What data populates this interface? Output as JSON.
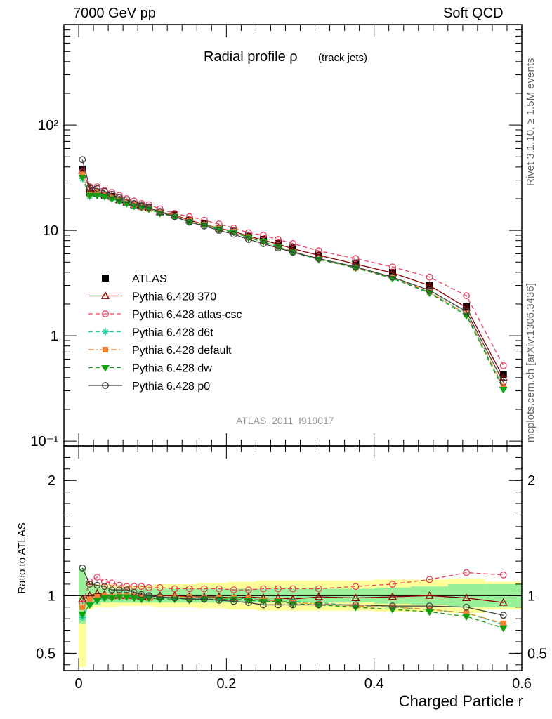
{
  "header": {
    "energy": "7000 GeV pp",
    "process": "Soft QCD"
  },
  "side": {
    "version": "Rivet 3.1.10, ≥ 1.5M events",
    "source": "mcplots.cern.ch [arXiv:1306.3436]"
  },
  "chart_data": [
    {
      "type": "line",
      "panel": "main",
      "title": "Radial profile ρ (track jets)",
      "title_main": "Radial profile ρ",
      "title_sub": "(track jets)",
      "analysis": "ATLAS_2011_I919017",
      "yscale": "log",
      "ylim": [
        0.09,
        900
      ],
      "xlim": [
        -0.02,
        0.6
      ],
      "yticks": [
        {
          "v": 0.1,
          "label": "10⁻¹"
        },
        {
          "v": 1,
          "label": "1"
        },
        {
          "v": 10,
          "label": "10"
        },
        {
          "v": 100,
          "label": "10²"
        }
      ],
      "x": [
        0.005,
        0.015,
        0.025,
        0.035,
        0.045,
        0.055,
        0.065,
        0.075,
        0.085,
        0.095,
        0.11,
        0.13,
        0.15,
        0.17,
        0.19,
        0.21,
        0.23,
        0.25,
        0.27,
        0.29,
        0.325,
        0.375,
        0.425,
        0.475,
        0.525,
        0.575
      ],
      "series": [
        {
          "name": "ATLAS",
          "style": "data",
          "color": "#000000",
          "values": [
            38,
            23,
            22.5,
            21.5,
            21,
            19.5,
            18.5,
            17.5,
            17,
            16.5,
            15,
            14,
            12.5,
            11.5,
            10.5,
            9.8,
            8.8,
            8.2,
            7.5,
            6.8,
            5.8,
            4.9,
            4.0,
            3.0,
            1.9,
            0.43
          ],
          "yerr": [
            0.06,
            0.03,
            0.03,
            0.03,
            0.03,
            0.03,
            0.03,
            0.03,
            0.03,
            0.03,
            0.03,
            0.03,
            0.03,
            0.03,
            0.03,
            0.03,
            0.03,
            0.03,
            0.03,
            0.03,
            0.03,
            0.03,
            0.04,
            0.04,
            0.05,
            0.06
          ]
        },
        {
          "name": "Pythia 6.428 370",
          "style": "solid",
          "marker": "triangle",
          "color": "#8b0000",
          "values": [
            37,
            25,
            23,
            22,
            21,
            19.5,
            18.5,
            17.5,
            17,
            16.5,
            15,
            14,
            12.5,
            11.4,
            10.5,
            9.8,
            8.8,
            8.1,
            7.4,
            6.7,
            5.8,
            4.8,
            3.95,
            3.0,
            1.85,
            0.4
          ]
        },
        {
          "name": "Pythia 6.428 atlas-csc",
          "style": "dashed",
          "marker": "circle",
          "color": "#e8405e",
          "values": [
            36,
            26,
            26,
            24,
            23,
            21.5,
            20,
            19,
            18,
            17.5,
            16,
            14.5,
            13.5,
            12.5,
            11.5,
            10.5,
            9.5,
            9,
            8.2,
            7.5,
            6.4,
            5.4,
            4.5,
            3.6,
            2.4,
            0.52
          ]
        },
        {
          "name": "Pythia 6.428 d6t",
          "style": "dashed",
          "marker": "star",
          "color": "#1dc9a0",
          "values": [
            31,
            21,
            22,
            21,
            20,
            19,
            18,
            17,
            16.5,
            16,
            14.5,
            13.5,
            12,
            11.3,
            10.4,
            9.7,
            8.6,
            7.8,
            7,
            6.3,
            5.4,
            4.4,
            3.55,
            2.6,
            1.6,
            0.32
          ]
        },
        {
          "name": "Pythia 6.428 default",
          "style": "dashdot",
          "marker": "square",
          "color": "#f08030",
          "values": [
            34,
            22,
            23,
            21.5,
            20.5,
            19.5,
            18.5,
            17.5,
            16.5,
            16,
            15,
            13.8,
            12.4,
            11.3,
            10.4,
            9.7,
            8.6,
            7.8,
            7,
            6.3,
            5.4,
            4.4,
            3.6,
            2.6,
            1.6,
            0.33
          ]
        },
        {
          "name": "Pythia 6.428 dw",
          "style": "dashed",
          "marker": "triangle-down",
          "color": "#10a010",
          "values": [
            32,
            21.5,
            21.5,
            21,
            20,
            19,
            18,
            17,
            16.5,
            16,
            14.5,
            13.5,
            12,
            11.2,
            10.3,
            9.6,
            8.5,
            7.8,
            7,
            6.2,
            5.3,
            4.4,
            3.5,
            2.55,
            1.55,
            0.31
          ]
        },
        {
          "name": "Pythia 6.428 p0",
          "style": "solid",
          "marker": "circle",
          "color": "#404040",
          "values": [
            47,
            25.5,
            25,
            23.5,
            22,
            20.5,
            19.5,
            18,
            17,
            16.5,
            15,
            13.5,
            12,
            11,
            10,
            9.2,
            8.2,
            7.5,
            6.8,
            6.2,
            5.4,
            4.5,
            3.6,
            2.7,
            1.7,
            0.36
          ]
        }
      ],
      "legend": {
        "placement": "left-middle"
      }
    },
    {
      "type": "line",
      "panel": "ratio",
      "ylabel": "Ratio to ATLAS",
      "xlabel": "Charged Particle r",
      "ylim": [
        0.35,
        2.3
      ],
      "xlim": [
        -0.02,
        0.6
      ],
      "yticks": [
        {
          "v": 0.5,
          "label": "0.5"
        },
        {
          "v": 1,
          "label": "1"
        },
        {
          "v": 2,
          "label": "2"
        }
      ],
      "xticks": [
        {
          "v": 0,
          "label": "0"
        },
        {
          "v": 0.2,
          "label": "0.2"
        },
        {
          "v": 0.4,
          "label": "0.4"
        },
        {
          "v": 0.6,
          "label": "0.6"
        }
      ],
      "band_inner": [
        [
          0.76,
          1.24
        ],
        [
          0.92,
          1.08
        ],
        [
          0.92,
          1.08
        ],
        [
          0.94,
          1.06
        ],
        [
          0.94,
          1.06
        ],
        [
          0.94,
          1.06
        ],
        [
          0.94,
          1.06
        ],
        [
          0.94,
          1.06
        ],
        [
          0.94,
          1.06
        ],
        [
          0.94,
          1.06
        ],
        [
          0.94,
          1.06
        ],
        [
          0.94,
          1.06
        ],
        [
          0.94,
          1.06
        ],
        [
          0.94,
          1.06
        ],
        [
          0.94,
          1.06
        ],
        [
          0.94,
          1.06
        ],
        [
          0.94,
          1.06
        ],
        [
          0.94,
          1.06
        ],
        [
          0.94,
          1.06
        ],
        [
          0.94,
          1.06
        ],
        [
          0.94,
          1.06
        ],
        [
          0.94,
          1.06
        ],
        [
          0.93,
          1.07
        ],
        [
          0.92,
          1.08
        ],
        [
          0.9,
          1.1
        ],
        [
          0.9,
          1.1
        ]
      ],
      "band_outer": [
        [
          0.38,
          1.24
        ],
        [
          0.88,
          1.12
        ],
        [
          0.9,
          1.1
        ],
        [
          0.9,
          1.1
        ],
        [
          0.9,
          1.1
        ],
        [
          0.91,
          1.09
        ],
        [
          0.91,
          1.09
        ],
        [
          0.91,
          1.09
        ],
        [
          0.91,
          1.09
        ],
        [
          0.91,
          1.09
        ],
        [
          0.9,
          1.1
        ],
        [
          0.9,
          1.1
        ],
        [
          0.9,
          1.1
        ],
        [
          0.89,
          1.11
        ],
        [
          0.89,
          1.11
        ],
        [
          0.88,
          1.12
        ],
        [
          0.88,
          1.12
        ],
        [
          0.87,
          1.13
        ],
        [
          0.87,
          1.13
        ],
        [
          0.87,
          1.13
        ],
        [
          0.87,
          1.13
        ],
        [
          0.87,
          1.13
        ],
        [
          0.86,
          1.14
        ],
        [
          0.86,
          1.14
        ],
        [
          0.85,
          1.15
        ],
        [
          0.88,
          1.12
        ]
      ],
      "series": [
        {
          "name": "Pythia 6.428 370",
          "values": [
            0.97,
            1.0,
            1.02,
            1.01,
            1.0,
            1.0,
            1.0,
            1.0,
            0.99,
            0.99,
            1.0,
            1.0,
            0.99,
            0.99,
            0.99,
            0.98,
            0.99,
            0.98,
            0.98,
            0.97,
            0.99,
            0.98,
            0.99,
            1.0,
            0.98,
            0.94
          ]
        },
        {
          "name": "Pythia 6.428 atlas-csc",
          "values": [
            0.93,
            1.12,
            1.16,
            1.12,
            1.11,
            1.09,
            1.08,
            1.08,
            1.08,
            1.07,
            1.07,
            1.06,
            1.06,
            1.06,
            1.06,
            1.05,
            1.05,
            1.06,
            1.06,
            1.06,
            1.06,
            1.08,
            1.1,
            1.14,
            1.2,
            1.18
          ]
        },
        {
          "name": "Pythia 6.428 d6t",
          "values": [
            0.81,
            0.93,
            0.97,
            0.98,
            0.99,
            1.0,
            1.0,
            0.99,
            0.98,
            0.99,
            0.98,
            0.98,
            0.97,
            0.98,
            0.98,
            0.97,
            0.98,
            0.96,
            0.95,
            0.95,
            0.94,
            0.91,
            0.9,
            0.88,
            0.85,
            0.75
          ]
        },
        {
          "name": "Pythia 6.428 default",
          "values": [
            0.9,
            0.97,
            0.99,
            1.0,
            0.99,
            1.0,
            1.0,
            1.0,
            0.99,
            0.98,
            0.99,
            0.99,
            0.99,
            0.98,
            0.98,
            0.98,
            0.98,
            0.96,
            0.95,
            0.94,
            0.93,
            0.91,
            0.9,
            0.88,
            0.85,
            0.76
          ]
        },
        {
          "name": "Pythia 6.428 dw",
          "values": [
            0.84,
            0.92,
            0.96,
            0.98,
            0.98,
            0.99,
            0.99,
            0.98,
            0.97,
            0.98,
            0.97,
            0.97,
            0.96,
            0.97,
            0.97,
            0.97,
            0.96,
            0.95,
            0.95,
            0.93,
            0.92,
            0.9,
            0.88,
            0.86,
            0.82,
            0.72
          ]
        },
        {
          "name": "Pythia 6.428 p0",
          "values": [
            1.24,
            1.1,
            1.09,
            1.08,
            1.05,
            1.05,
            1.05,
            1.03,
            1.01,
            1.0,
            0.99,
            0.98,
            0.97,
            0.97,
            0.96,
            0.95,
            0.94,
            0.92,
            0.92,
            0.92,
            0.92,
            0.92,
            0.91,
            0.91,
            0.9,
            0.83
          ]
        }
      ]
    }
  ]
}
